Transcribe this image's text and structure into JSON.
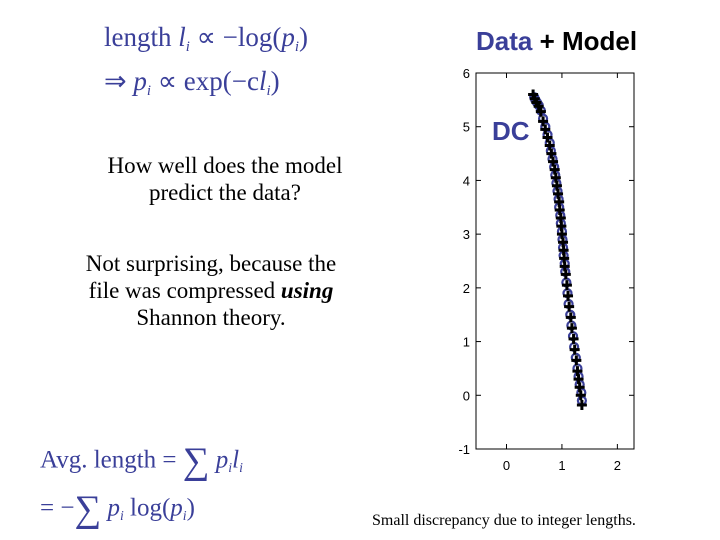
{
  "slide": {
    "formula_top": {
      "line1": {
        "a": "length",
        "b": "l",
        "c": "i",
        "d": "∝ −log(",
        "e": "p",
        "f": "i",
        "g": ")"
      },
      "line2": {
        "a": "⇒",
        "b": "p",
        "c": "i",
        "d": "∝ exp(−c",
        "e": "l",
        "f": "i",
        "g": ")"
      }
    },
    "question": "How well does the model predict the data?",
    "answer_pre": "Not surprising, because the file was compressed ",
    "answer_em": "using",
    "answer_post": " Shannon theory.",
    "formula_bottom": {
      "line1": {
        "a": "Avg. length =",
        "b": "∑",
        "c": "p",
        "d": "i",
        "e": "l",
        "f": "i"
      },
      "line2": {
        "a": "= −",
        "b": "∑",
        "c": "p",
        "d": "i",
        "e": "log(",
        "f": "p",
        "g": "i",
        "h": ")"
      }
    },
    "footnote": "Small discrepancy due to integer lengths."
  },
  "chart_data": {
    "type": "scatter",
    "title_parts": [
      {
        "text": "Data",
        "color": "#3a3f99"
      },
      {
        "text": " + Model",
        "color": "#000000"
      }
    ],
    "annotation": "DC",
    "colors": {
      "data": "#3a3f99",
      "model": "#000000",
      "annotation": "#3a3f99"
    },
    "xlim": [
      -0.55,
      2.3
    ],
    "ylim": [
      -1,
      6
    ],
    "xticks": [
      0,
      1,
      2
    ],
    "yticks": [
      -1,
      0,
      1,
      2,
      3,
      4,
      5,
      6
    ],
    "grid": false,
    "series": [
      {
        "marker": "circle",
        "x": [
          0.5,
          0.52,
          0.55,
          0.58,
          0.62,
          0.66,
          0.7,
          0.74,
          0.78,
          0.8,
          0.83,
          0.86,
          0.88,
          0.9,
          0.92,
          0.94,
          0.95,
          0.97,
          0.98,
          1.0,
          1.01,
          1.02,
          1.03,
          1.05,
          1.06,
          1.08,
          1.1,
          1.12,
          1.15,
          1.17,
          1.2,
          1.22,
          1.25,
          1.28,
          1.3,
          1.32,
          1.35,
          1.36
        ],
        "y": [
          5.55,
          5.5,
          5.45,
          5.4,
          5.3,
          5.15,
          5.0,
          4.85,
          4.7,
          4.55,
          4.4,
          4.25,
          4.1,
          3.95,
          3.8,
          3.65,
          3.5,
          3.35,
          3.2,
          3.05,
          2.9,
          2.75,
          2.6,
          2.45,
          2.3,
          2.1,
          1.9,
          1.7,
          1.5,
          1.3,
          1.1,
          0.9,
          0.7,
          0.5,
          0.35,
          0.2,
          0.05,
          -0.1
        ]
      },
      {
        "marker": "plus",
        "x": [
          0.48,
          0.51,
          0.54,
          0.58,
          0.62,
          0.66,
          0.7,
          0.74,
          0.78,
          0.81,
          0.84,
          0.87,
          0.89,
          0.91,
          0.93,
          0.95,
          0.96,
          0.98,
          0.99,
          1.0,
          1.02,
          1.03,
          1.04,
          1.05,
          1.07,
          1.09,
          1.11,
          1.13,
          1.16,
          1.18,
          1.21,
          1.23,
          1.26,
          1.28,
          1.3,
          1.32,
          1.34,
          1.36
        ],
        "y": [
          5.6,
          5.52,
          5.45,
          5.38,
          5.28,
          5.1,
          4.95,
          4.8,
          4.65,
          4.5,
          4.35,
          4.2,
          4.05,
          3.9,
          3.75,
          3.6,
          3.45,
          3.3,
          3.15,
          3.0,
          2.85,
          2.7,
          2.55,
          2.4,
          2.25,
          2.05,
          1.85,
          1.65,
          1.45,
          1.25,
          1.05,
          0.85,
          0.65,
          0.45,
          0.3,
          0.15,
          0.0,
          -0.18
        ]
      }
    ]
  }
}
